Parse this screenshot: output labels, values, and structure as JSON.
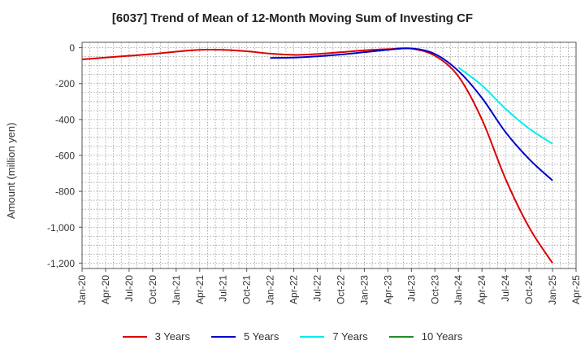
{
  "chart_data": {
    "type": "line",
    "title": "[6037]  Trend of Mean of 12-Month Moving Sum of Investing CF",
    "xlabel": "",
    "ylabel": "Amount (million yen)",
    "ylim": [
      -1230,
      30
    ],
    "y_ticks": [
      0,
      -200,
      -400,
      -600,
      -800,
      -1000,
      -1200
    ],
    "y_tick_labels": [
      "0",
      "-200",
      "-400",
      "-600",
      "-800",
      "-1,000",
      "-1,200"
    ],
    "x_tick_labels": [
      "Jan-20",
      "Apr-20",
      "Jul-20",
      "Oct-20",
      "Jan-21",
      "Apr-21",
      "Jul-21",
      "Oct-21",
      "Jan-22",
      "Apr-22",
      "Jul-22",
      "Oct-22",
      "Jan-23",
      "Apr-23",
      "Jul-23",
      "Oct-23",
      "Jan-24",
      "Apr-24",
      "Jul-24",
      "Oct-24",
      "Jan-25",
      "Apr-25"
    ],
    "x_start": "Jan-20",
    "x_unit": "months since Jan-20",
    "grid": true,
    "legend_position": "bottom",
    "series": [
      {
        "name": "3 Years",
        "color": "#dd0000",
        "x": [
          0,
          3,
          6,
          9,
          12,
          15,
          18,
          21,
          24,
          27,
          30,
          33,
          36,
          39,
          42,
          45,
          48,
          51,
          54,
          57,
          60
        ],
        "values": [
          -65,
          -55,
          -45,
          -35,
          -22,
          -12,
          -12,
          -20,
          -33,
          -40,
          -35,
          -25,
          -15,
          -8,
          -5,
          -45,
          -160,
          -400,
          -730,
          -1000,
          -1200
        ]
      },
      {
        "name": "5 Years",
        "color": "#0000cc",
        "x": [
          24,
          27,
          30,
          33,
          36,
          39,
          42,
          45,
          48,
          51,
          54,
          57,
          60
        ],
        "values": [
          -57,
          -55,
          -48,
          -38,
          -25,
          -12,
          -4,
          -35,
          -130,
          -280,
          -470,
          -620,
          -740
        ]
      },
      {
        "name": "7 Years",
        "color": "#00eeee",
        "x": [
          48,
          51,
          54,
          57,
          60
        ],
        "values": [
          -110,
          -210,
          -340,
          -450,
          -535
        ]
      },
      {
        "name": "10 Years",
        "color": "#228b22",
        "x": [],
        "values": []
      }
    ]
  }
}
